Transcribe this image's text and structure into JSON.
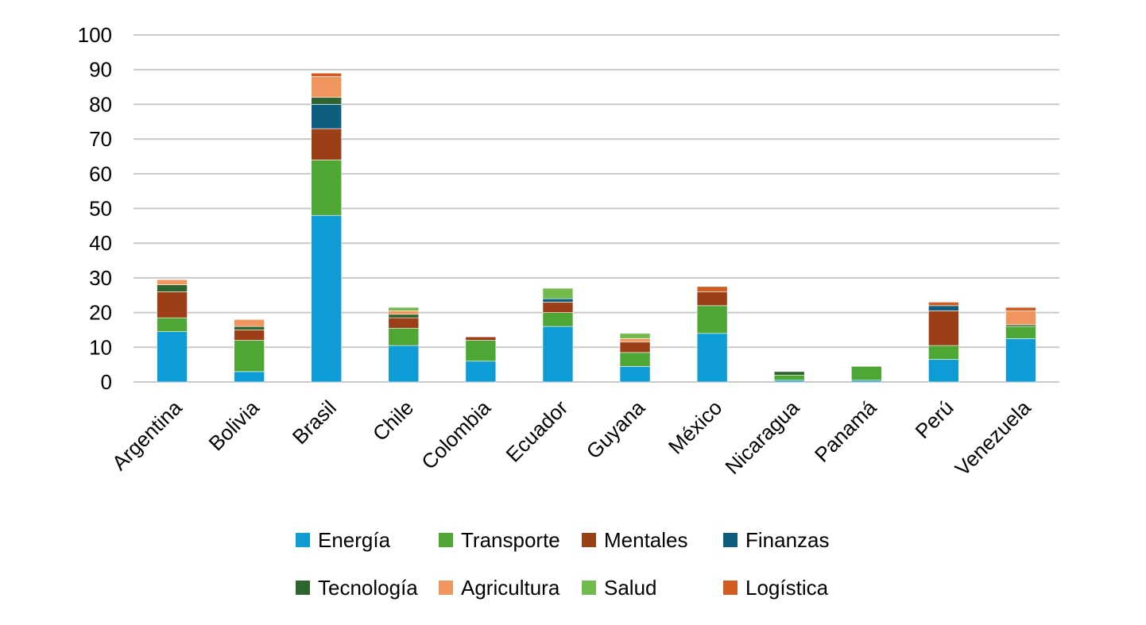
{
  "chart_data": {
    "type": "bar",
    "stacked": true,
    "categories": [
      "Argentina",
      "Bolivia",
      "Brasil",
      "Chile",
      "Colombia",
      "Ecuador",
      "Guyana",
      "México",
      "Nicaragua",
      "Panamá",
      "Perú",
      "Venezuela"
    ],
    "ylim": [
      0,
      100
    ],
    "yticks": [
      0,
      10,
      20,
      30,
      40,
      50,
      60,
      70,
      80,
      90,
      100
    ],
    "grid": true,
    "legend_position": "bottom",
    "series": [
      {
        "name": "Energía",
        "color": "#0E9CD6",
        "values": [
          14.5,
          3,
          48,
          10.5,
          6,
          16,
          4.5,
          14,
          0.5,
          0.5,
          6.5,
          12.5
        ]
      },
      {
        "name": "Transporte",
        "color": "#4EA635",
        "values": [
          4,
          9,
          16,
          5,
          6,
          4,
          4,
          8,
          1.5,
          4,
          4,
          3.5
        ]
      },
      {
        "name": "Mentales",
        "color": "#9C3F16",
        "values": [
          7.5,
          3,
          9,
          3,
          1,
          3,
          3,
          4,
          0,
          0,
          10,
          0
        ]
      },
      {
        "name": "Finanzas",
        "color": "#0E5E80",
        "values": [
          0,
          0,
          7,
          0,
          0,
          1,
          0,
          0,
          0,
          0,
          1.5,
          0
        ]
      },
      {
        "name": "Tecnología",
        "color": "#2E6430",
        "values": [
          2,
          1,
          2,
          1,
          0,
          0,
          0,
          0,
          1,
          0,
          0,
          0.5
        ]
      },
      {
        "name": "Agricultura",
        "color": "#F0955E",
        "values": [
          1.5,
          2,
          6,
          1,
          0,
          0,
          1,
          0,
          0,
          0,
          0,
          4
        ]
      },
      {
        "name": "Salud",
        "color": "#73BA4C",
        "values": [
          0,
          0,
          0,
          1,
          0,
          3,
          1.5,
          0,
          0,
          0,
          0,
          0
        ]
      },
      {
        "name": "Logística",
        "color": "#D35B1F",
        "values": [
          0,
          0,
          1,
          0,
          0,
          0,
          0,
          1.5,
          0,
          0,
          1,
          1
        ]
      }
    ]
  }
}
